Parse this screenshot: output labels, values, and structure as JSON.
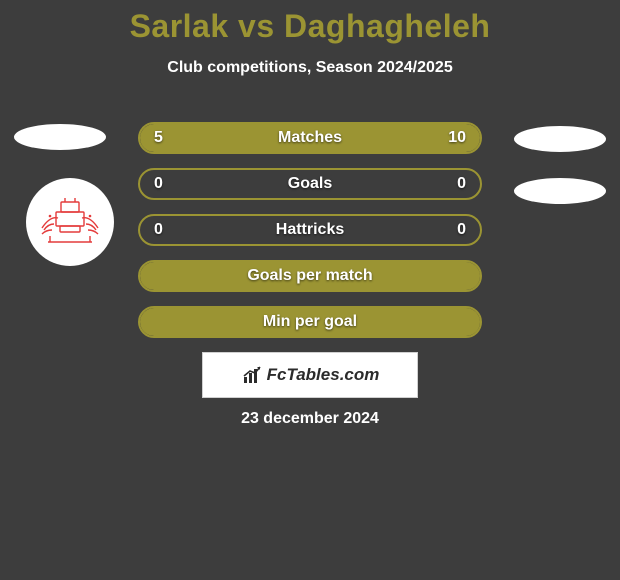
{
  "title_text": "Sarlak vs Daghagheleh",
  "title_color": "#9b9433",
  "subtitle": "Club competitions, Season 2024/2025",
  "date": "23 december 2024",
  "attribution": "FcTables.com",
  "bar_border_color": "#9b9433",
  "bar_fill_color": "#9b9433",
  "bar_bg_color": "transparent",
  "text_color": "#ffffff",
  "bars": [
    {
      "label": "Matches",
      "left": "5",
      "right": "10",
      "left_val": 5,
      "right_val": 10,
      "max": 15
    },
    {
      "label": "Goals",
      "left": "0",
      "right": "0",
      "left_val": 0,
      "right_val": 0,
      "max": 1
    },
    {
      "label": "Hattricks",
      "left": "0",
      "right": "0",
      "left_val": 0,
      "right_val": 0,
      "max": 1
    },
    {
      "label": "Goals per match",
      "left": "",
      "right": "",
      "left_val": 1,
      "right_val": 1,
      "max": 2
    },
    {
      "label": "Min per goal",
      "left": "",
      "right": "",
      "left_val": 1,
      "right_val": 1,
      "max": 2
    }
  ],
  "crest_stroke": "#e43b3b"
}
